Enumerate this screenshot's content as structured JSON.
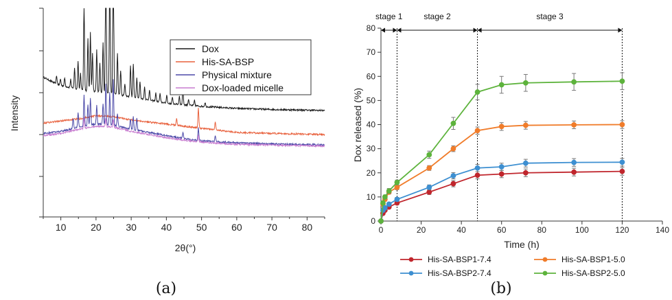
{
  "chart_data": [
    {
      "panel_label": "(a)",
      "type": "line",
      "title": "",
      "xlabel": "2θ(°)",
      "ylabel": "Intensity",
      "xlim": [
        5,
        85
      ],
      "x_ticks": [
        10,
        20,
        30,
        40,
        50,
        60,
        70,
        80
      ],
      "y_ticks_labeled": false,
      "grid": false,
      "legend_position": "top-right",
      "series": [
        {
          "name": "Dox",
          "color": "#1a1a1a",
          "baseline": [
            [
              5,
              0.67
            ],
            [
              9,
              0.635
            ],
            [
              15,
              0.61
            ],
            [
              20,
              0.6
            ],
            [
              25,
              0.59
            ],
            [
              32,
              0.57
            ],
            [
              40,
              0.545
            ],
            [
              50,
              0.53
            ],
            [
              60,
              0.52
            ],
            [
              70,
              0.515
            ],
            [
              85,
              0.51
            ]
          ],
          "peaks": [
            [
              8.8,
              0.04
            ],
            [
              9.9,
              0.03
            ],
            [
              11.1,
              0.04
            ],
            [
              12.8,
              0.04
            ],
            [
              13.9,
              0.1
            ],
            [
              14.9,
              0.14
            ],
            [
              15.6,
              0.08
            ],
            [
              16.6,
              0.42
            ],
            [
              17.7,
              0.25
            ],
            [
              18.4,
              0.28
            ],
            [
              19.0,
              0.18
            ],
            [
              20.2,
              0.2
            ],
            [
              21.1,
              0.14
            ],
            [
              22.0,
              0.24
            ],
            [
              22.8,
              0.86
            ],
            [
              23.9,
              0.62
            ],
            [
              24.9,
              0.9
            ],
            [
              26.1,
              0.2
            ],
            [
              27.0,
              0.12
            ],
            [
              28.2,
              0.06
            ],
            [
              29.8,
              0.15
            ],
            [
              30.6,
              0.16
            ],
            [
              31.6,
              0.1
            ],
            [
              32.5,
              0.08
            ],
            [
              33.8,
              0.06
            ],
            [
              35.2,
              0.05
            ],
            [
              37.0,
              0.04
            ],
            [
              38.2,
              0.04
            ],
            [
              40.1,
              0.04
            ],
            [
              41.7,
              0.03
            ],
            [
              43.7,
              0.04
            ],
            [
              44.7,
              0.08
            ],
            [
              46.3,
              0.03
            ],
            [
              48.0,
              0.025
            ],
            [
              51.0,
              0.02
            ]
          ]
        },
        {
          "name": "His-SA-BSP",
          "color": "#e8603c",
          "baseline": [
            [
              5,
              0.45
            ],
            [
              10,
              0.46
            ],
            [
              15,
              0.47
            ],
            [
              20,
              0.485
            ],
            [
              25,
              0.48
            ],
            [
              30,
              0.465
            ],
            [
              35,
              0.455
            ],
            [
              40,
              0.445
            ],
            [
              45,
              0.435
            ],
            [
              50,
              0.425
            ],
            [
              55,
              0.415
            ],
            [
              60,
              0.405
            ],
            [
              70,
              0.4
            ],
            [
              85,
              0.395
            ]
          ],
          "peaks": [
            [
              42.9,
              0.03
            ],
            [
              49.1,
              0.095
            ],
            [
              53.9,
              0.04
            ]
          ]
        },
        {
          "name": "Physical mixture",
          "color": "#4b49a8",
          "baseline": [
            [
              5,
              0.4
            ],
            [
              10,
              0.41
            ],
            [
              15,
              0.43
            ],
            [
              20,
              0.445
            ],
            [
              25,
              0.44
            ],
            [
              30,
              0.42
            ],
            [
              35,
              0.405
            ],
            [
              40,
              0.39
            ],
            [
              45,
              0.375
            ],
            [
              50,
              0.365
            ],
            [
              55,
              0.36
            ],
            [
              60,
              0.355
            ],
            [
              70,
              0.35
            ],
            [
              85,
              0.345
            ]
          ],
          "peaks": [
            [
              13.5,
              0.05
            ],
            [
              14.9,
              0.07
            ],
            [
              16.6,
              0.15
            ],
            [
              17.7,
              0.1
            ],
            [
              18.4,
              0.13
            ],
            [
              20.2,
              0.09
            ],
            [
              22.0,
              0.1
            ],
            [
              22.8,
              0.2
            ],
            [
              23.9,
              0.16
            ],
            [
              24.9,
              0.22
            ],
            [
              26.1,
              0.06
            ],
            [
              29.8,
              0.05
            ],
            [
              30.6,
              0.06
            ],
            [
              31.6,
              0.06
            ],
            [
              44.7,
              0.03
            ],
            [
              49.1,
              0.06
            ],
            [
              53.9,
              0.025
            ]
          ]
        },
        {
          "name": "Dox-loaded micelle",
          "color": "#c77bcf",
          "baseline": [
            [
              5,
              0.39
            ],
            [
              10,
              0.4
            ],
            [
              15,
              0.42
            ],
            [
              20,
              0.435
            ],
            [
              25,
              0.43
            ],
            [
              30,
              0.41
            ],
            [
              35,
              0.395
            ],
            [
              40,
              0.38
            ],
            [
              45,
              0.368
            ],
            [
              50,
              0.358
            ],
            [
              55,
              0.353
            ],
            [
              60,
              0.348
            ],
            [
              70,
              0.344
            ],
            [
              85,
              0.34
            ]
          ],
          "peaks": [
            [
              16.6,
              0.05
            ],
            [
              22.8,
              0.04
            ],
            [
              24.9,
              0.04
            ],
            [
              49.1,
              0.03
            ]
          ]
        }
      ]
    },
    {
      "panel_label": "(b)",
      "type": "line",
      "title": "",
      "xlabel": "Time (h)",
      "ylabel": "Dox released (%)",
      "xlim": [
        0,
        140
      ],
      "ylim": [
        0,
        80
      ],
      "x_ticks": [
        0,
        20,
        40,
        60,
        80,
        100,
        120,
        140
      ],
      "y_ticks": [
        0,
        10,
        20,
        30,
        40,
        50,
        60,
        70,
        80
      ],
      "grid": false,
      "legend_position": "bottom",
      "x": [
        0,
        1,
        2,
        4,
        8,
        24,
        36,
        48,
        60,
        72,
        96,
        120
      ],
      "stages": [
        {
          "label": "stage 1",
          "from": 0,
          "to": 8
        },
        {
          "label": "stage 2",
          "from": 8,
          "to": 48
        },
        {
          "label": "stage 3",
          "from": 48,
          "to": 120
        }
      ],
      "series": [
        {
          "name": "His-SA-BSP1-7.4",
          "color": "#c0262d",
          "values": [
            0,
            3.2,
            4.5,
            5.8,
            7.5,
            12,
            15.5,
            19,
            19.5,
            20,
            20.3,
            20.6
          ],
          "errors": [
            0.3,
            0.5,
            0.5,
            0.6,
            0.7,
            1,
            1.3,
            1.5,
            1.5,
            1.6,
            1.6,
            1.6
          ]
        },
        {
          "name": "His-SA-BSP1-5.0",
          "color": "#f07c2a",
          "values": [
            0,
            7,
            9,
            12,
            14,
            22,
            30,
            37.5,
            39.2,
            39.7,
            39.9,
            40
          ],
          "errors": [
            0.3,
            0.6,
            0.7,
            0.8,
            1,
            1,
            1.2,
            1.5,
            1.6,
            1.6,
            1.6,
            1.6
          ]
        },
        {
          "name": "His-SA-BSP2-7.4",
          "color": "#3d8fd1",
          "values": [
            0,
            4.5,
            5.5,
            7,
            9,
            14,
            18.8,
            22,
            22.5,
            24,
            24.3,
            24.4
          ],
          "errors": [
            0.3,
            0.5,
            0.6,
            0.7,
            0.8,
            1,
            1.3,
            1.5,
            1.5,
            1.6,
            1.6,
            1.6
          ]
        },
        {
          "name": "His-SA-BSP2-5.0",
          "color": "#5db33c",
          "values": [
            0,
            7.5,
            10,
            12.5,
            16,
            27.5,
            40.5,
            53.5,
            56.5,
            57.3,
            57.7,
            58
          ],
          "errors": [
            0.3,
            0.6,
            0.8,
            1,
            1,
            1.5,
            2.5,
            3.2,
            3.5,
            3.5,
            3.5,
            3.5
          ]
        }
      ]
    }
  ]
}
